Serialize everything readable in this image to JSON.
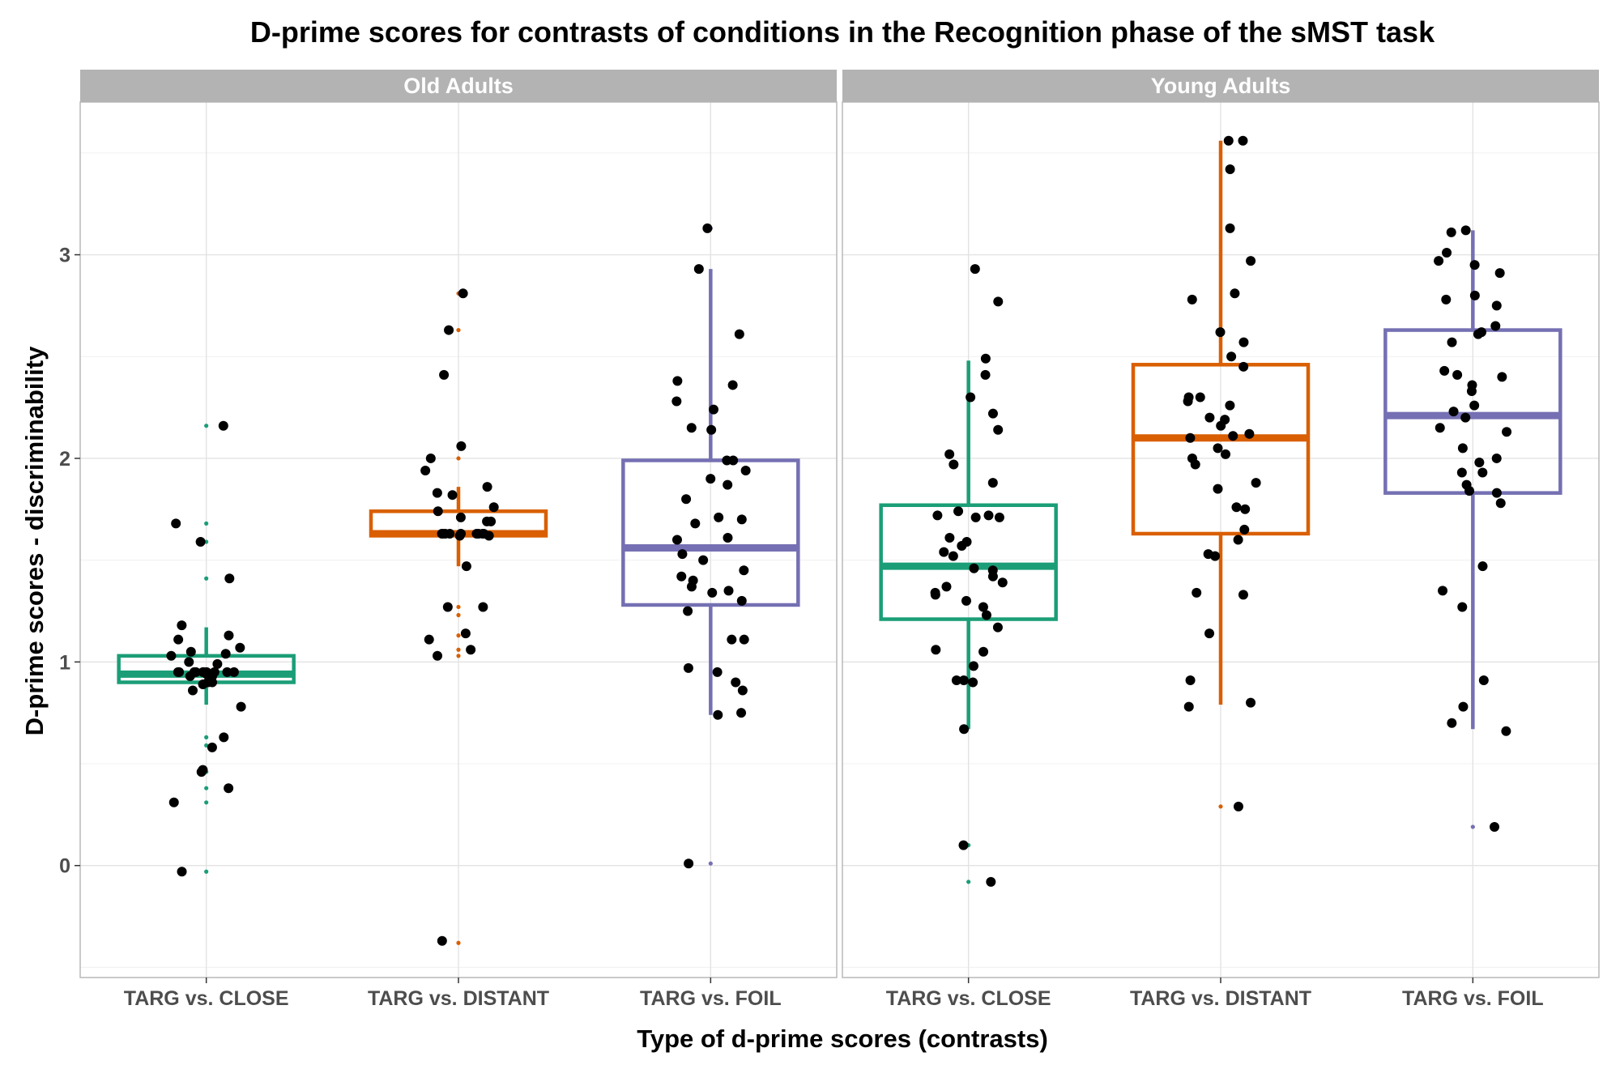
{
  "chart_data": {
    "type": "box-jitter",
    "title": "D-prime scores for contrasts of conditions in the Recognition phase of the sMST task",
    "xlabel": "Type of d-prime scores (contrasts)",
    "ylabel": "D-prime scores - discriminability",
    "ylim": [
      -0.55,
      3.75
    ],
    "yticks": [
      0,
      1,
      2,
      3
    ],
    "grid": true,
    "legend": "none",
    "categories": [
      "TARG vs. CLOSE",
      "TARG vs. DISTANT",
      "TARG vs. FOIL"
    ],
    "colors": [
      "#1b9e77",
      "#d95f02",
      "#7570b3"
    ],
    "panels": [
      {
        "name": "Old Adults",
        "boxes": [
          {
            "category": "TARG vs. CLOSE",
            "min": 0.79,
            "q1": 0.9,
            "median": 0.94,
            "q3": 1.03,
            "max": 1.17
          },
          {
            "category": "TARG vs. DISTANT",
            "min": 1.47,
            "q1": 1.62,
            "median": 1.63,
            "q3": 1.74,
            "max": 1.86
          },
          {
            "category": "TARG vs. FOIL",
            "min": 0.74,
            "q1": 1.28,
            "median": 1.56,
            "q3": 1.99,
            "max": 2.93
          }
        ],
        "outliers": [
          {
            "category": "TARG vs. CLOSE",
            "values": [
              2.16,
              1.68,
              1.59,
              1.41,
              0.63,
              0.59,
              0.46,
              0.38,
              0.31,
              -0.03
            ]
          },
          {
            "category": "TARG vs. DISTANT",
            "values": [
              2.81,
              2.63,
              2.06,
              2.0,
              1.27,
              1.23,
              1.13,
              1.06,
              1.03,
              -0.38
            ]
          },
          {
            "category": "TARG vs. FOIL",
            "values": [
              3.13,
              0.01
            ]
          }
        ],
        "points": [
          {
            "category": "TARG vs. CLOSE",
            "values": [
              2.16,
              1.68,
              1.59,
              1.41,
              1.18,
              1.13,
              1.11,
              1.07,
              1.05,
              1.04,
              1.03,
              1.0,
              0.99,
              0.95,
              0.95,
              0.95,
              0.95,
              0.95,
              0.95,
              0.95,
              0.95,
              0.95,
              0.95,
              0.94,
              0.93,
              0.93,
              0.9,
              0.9,
              0.89,
              0.86,
              0.78,
              0.63,
              0.58,
              0.47,
              0.46,
              0.38,
              0.31,
              -0.03
            ]
          },
          {
            "category": "TARG vs. DISTANT",
            "values": [
              2.81,
              2.63,
              2.41,
              2.06,
              2.0,
              1.94,
              1.86,
              1.83,
              1.82,
              1.76,
              1.74,
              1.71,
              1.69,
              1.69,
              1.63,
              1.63,
              1.63,
              1.63,
              1.63,
              1.63,
              1.63,
              1.63,
              1.63,
              1.62,
              1.62,
              1.47,
              1.27,
              1.27,
              1.14,
              1.11,
              1.06,
              1.03,
              -0.37
            ]
          },
          {
            "category": "TARG vs. FOIL",
            "values": [
              3.13,
              2.93,
              2.61,
              2.38,
              2.36,
              2.28,
              2.24,
              2.15,
              2.14,
              1.99,
              1.99,
              1.94,
              1.9,
              1.87,
              1.8,
              1.71,
              1.7,
              1.68,
              1.61,
              1.6,
              1.53,
              1.5,
              1.45,
              1.42,
              1.4,
              1.37,
              1.35,
              1.34,
              1.3,
              1.25,
              1.11,
              1.11,
              0.97,
              0.95,
              0.9,
              0.86,
              0.75,
              0.74,
              0.01
            ]
          }
        ]
      },
      {
        "name": "Young Adults",
        "boxes": [
          {
            "category": "TARG vs. CLOSE",
            "min": 0.67,
            "q1": 1.21,
            "median": 1.47,
            "q3": 1.77,
            "max": 2.48
          },
          {
            "category": "TARG vs. DISTANT",
            "min": 0.79,
            "q1": 1.63,
            "median": 2.1,
            "q3": 2.46,
            "max": 3.56
          },
          {
            "category": "TARG vs. FOIL",
            "min": 0.67,
            "q1": 1.83,
            "median": 2.21,
            "q3": 2.63,
            "max": 3.12
          }
        ],
        "outliers": [
          {
            "category": "TARG vs. CLOSE",
            "values": [
              0.1,
              -0.08
            ]
          },
          {
            "category": "TARG vs. DISTANT",
            "values": [
              0.29
            ]
          },
          {
            "category": "TARG vs. FOIL",
            "values": [
              0.19
            ]
          }
        ],
        "points": [
          {
            "category": "TARG vs. CLOSE",
            "values": [
              2.93,
              2.77,
              2.49,
              2.41,
              2.3,
              2.22,
              2.14,
              2.02,
              1.97,
              1.88,
              1.74,
              1.72,
              1.72,
              1.71,
              1.71,
              1.61,
              1.59,
              1.57,
              1.54,
              1.52,
              1.46,
              1.45,
              1.42,
              1.39,
              1.37,
              1.34,
              1.33,
              1.3,
              1.27,
              1.23,
              1.17,
              1.06,
              1.05,
              0.98,
              0.91,
              0.91,
              0.9,
              0.67,
              0.1,
              -0.08
            ]
          },
          {
            "category": "TARG vs. DISTANT",
            "values": [
              3.56,
              3.56,
              3.42,
              3.13,
              2.97,
              2.81,
              2.78,
              2.62,
              2.57,
              2.5,
              2.45,
              2.3,
              2.3,
              2.28,
              2.26,
              2.2,
              2.19,
              2.16,
              2.12,
              2.11,
              2.1,
              2.05,
              2.02,
              2.0,
              1.97,
              1.88,
              1.85,
              1.76,
              1.75,
              1.65,
              1.6,
              1.53,
              1.52,
              1.34,
              1.33,
              1.14,
              0.91,
              0.8,
              0.78,
              0.29
            ]
          },
          {
            "category": "TARG vs. FOIL",
            "values": [
              3.12,
              3.11,
              3.01,
              2.97,
              2.95,
              2.91,
              2.8,
              2.78,
              2.75,
              2.65,
              2.62,
              2.61,
              2.57,
              2.43,
              2.41,
              2.4,
              2.36,
              2.33,
              2.26,
              2.23,
              2.2,
              2.15,
              2.13,
              2.05,
              2.0,
              1.98,
              1.93,
              1.93,
              1.87,
              1.84,
              1.83,
              1.78,
              1.47,
              1.35,
              1.27,
              0.91,
              0.78,
              0.7,
              0.66,
              0.19
            ]
          }
        ]
      }
    ]
  }
}
